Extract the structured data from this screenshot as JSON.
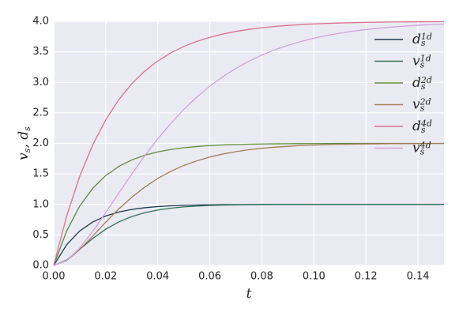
{
  "chart_data": {
    "type": "line",
    "x_label": "t",
    "y_label": "v_s, d_s",
    "x": [
      0,
      0.005,
      0.01,
      0.015,
      0.02,
      0.025,
      0.03,
      0.035,
      0.04,
      0.045,
      0.05,
      0.055,
      0.06,
      0.065,
      0.07,
      0.075,
      0.08,
      0.085,
      0.09,
      0.095,
      0.1,
      0.105,
      0.11,
      0.115,
      0.12,
      0.125,
      0.13,
      0.135,
      0.14,
      0.145,
      0.15
    ],
    "series": [
      {
        "name": "d_s^{1d}",
        "color": "#1d3a54",
        "values": [
          0,
          0.341,
          0.565,
          0.713,
          0.811,
          0.875,
          0.918,
          0.946,
          0.964,
          0.977,
          0.985,
          0.99,
          0.993,
          0.996,
          0.997,
          0.998,
          0.999,
          0.999,
          1,
          1,
          1,
          1,
          1,
          1,
          1,
          1,
          1,
          1,
          1,
          1,
          1
        ]
      },
      {
        "name": "v_s^{1d}",
        "color": "#2e7354",
        "values": [
          0,
          0.09,
          0.264,
          0.442,
          0.594,
          0.713,
          0.801,
          0.864,
          0.908,
          0.939,
          0.96,
          0.973,
          0.983,
          0.989,
          0.993,
          0.996,
          0.997,
          0.998,
          0.999,
          1,
          1,
          1,
          1,
          1,
          1,
          1,
          1,
          1,
          1,
          1,
          1
        ]
      },
      {
        "name": "d_s^{2d}",
        "color": "#5e8c3e",
        "values": [
          0,
          0.567,
          0.973,
          1.264,
          1.473,
          1.622,
          1.729,
          1.806,
          1.861,
          1.9,
          1.929,
          1.949,
          1.963,
          1.974,
          1.981,
          1.987,
          1.99,
          1.993,
          1.995,
          1.996,
          1.997,
          1.998,
          1.999,
          1.999,
          2,
          2,
          2,
          2,
          2,
          2,
          2
        ]
      },
      {
        "name": "v_s^{2d}",
        "color": "#a77d55",
        "values": [
          0,
          0.08,
          0.26,
          0.482,
          0.71,
          0.926,
          1.118,
          1.284,
          1.426,
          1.542,
          1.638,
          1.714,
          1.776,
          1.826,
          1.864,
          1.896,
          1.92,
          1.938,
          1.952,
          1.964,
          1.972,
          1.979,
          1.984,
          1.988,
          1.991,
          1.993,
          1.995,
          1.996,
          1.997,
          1.998,
          1.998
        ]
      },
      {
        "name": "d_s^{4d}",
        "color": "#d9738c",
        "values": [
          0,
          0.813,
          1.461,
          1.977,
          2.388,
          2.716,
          2.977,
          3.185,
          3.351,
          3.483,
          3.588,
          3.672,
          3.738,
          3.792,
          3.834,
          3.868,
          3.895,
          3.916,
          3.933,
          3.947,
          3.958,
          3.966,
          3.973,
          3.978,
          3.983,
          3.986,
          3.989,
          3.991,
          3.993,
          3.994,
          3.996
        ]
      },
      {
        "name": "v_s^{4d}",
        "color": "#d4a0e2",
        "values": [
          0,
          0.082,
          0.284,
          0.558,
          0.866,
          1.185,
          1.498,
          1.798,
          2.075,
          2.328,
          2.556,
          2.759,
          2.937,
          3.093,
          3.229,
          3.346,
          3.447,
          3.534,
          3.607,
          3.67,
          3.723,
          3.768,
          3.806,
          3.838,
          3.865,
          3.888,
          3.907,
          3.922,
          3.936,
          3.947,
          3.956
        ]
      }
    ],
    "xlim": [
      0,
      0.15
    ],
    "ylim": [
      0,
      4
    ],
    "xticks": [
      {
        "value": 0,
        "label": "0.00"
      },
      {
        "value": 0.02,
        "label": "0.02"
      },
      {
        "value": 0.04,
        "label": "0.04"
      },
      {
        "value": 0.06,
        "label": "0.06"
      },
      {
        "value": 0.08,
        "label": "0.08"
      },
      {
        "value": 0.1,
        "label": "0.10"
      },
      {
        "value": 0.12,
        "label": "0.12"
      },
      {
        "value": 0.14,
        "label": "0.14"
      }
    ],
    "yticks": [
      {
        "value": 0,
        "label": "0.0"
      },
      {
        "value": 0.5,
        "label": "0.5"
      },
      {
        "value": 1,
        "label": "1.0"
      },
      {
        "value": 1.5,
        "label": "1.5"
      },
      {
        "value": 2,
        "label": "2.0"
      },
      {
        "value": 2.5,
        "label": "2.5"
      },
      {
        "value": 3,
        "label": "3.0"
      },
      {
        "value": 3.5,
        "label": "3.5"
      },
      {
        "value": 4,
        "label": "4.0"
      }
    ],
    "grid": true,
    "legend": "upper right"
  }
}
